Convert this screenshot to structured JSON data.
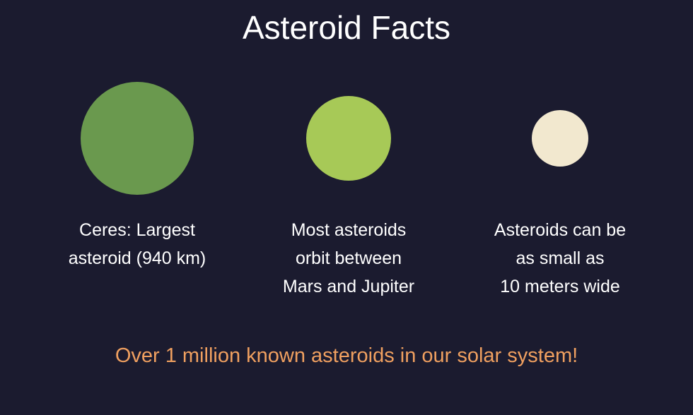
{
  "title": "Asteroid Facts",
  "facts": [
    {
      "color": "#6a994e",
      "lines": [
        "Ceres: Largest",
        "asteroid (940 km)"
      ]
    },
    {
      "color": "#a7c957",
      "lines": [
        "Most asteroids",
        "orbit between",
        "Mars and Jupiter"
      ]
    },
    {
      "color": "#f2e8cf",
      "lines": [
        "Asteroids can be",
        "as small as",
        "10 meters wide"
      ]
    }
  ],
  "footer": "Over 1 million known asteroids in our solar system!",
  "colors": {
    "background": "#1b1b2f",
    "title": "#ffffff",
    "caption": "#ffffff",
    "footer": "#f0a060"
  }
}
